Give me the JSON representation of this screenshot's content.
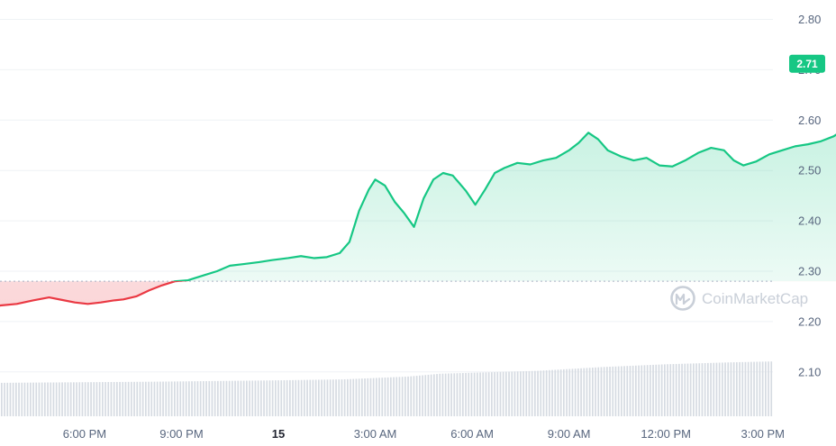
{
  "chart_data": {
    "type": "line",
    "title": "",
    "xlabel": "",
    "ylabel": "",
    "ylim": [
      2.1,
      2.85
    ],
    "y_ticks": [
      "2.80",
      "2.70",
      "2.60",
      "2.50",
      "2.40",
      "2.30",
      "2.20",
      "2.10"
    ],
    "x_ticks": [
      "6:00 PM",
      "9:00 PM",
      "15",
      "3:00 AM",
      "6:00 AM",
      "9:00 AM",
      "12:00 PM",
      "3:00 PM"
    ],
    "x_ticks_bold": [
      "15"
    ],
    "x_range_hours": [
      -21.5,
      39.5
    ],
    "baseline_price": 2.28,
    "current_price_label": "2.71",
    "grid": "horizontal",
    "colors": {
      "up": "#16c784",
      "down": "#ea3943",
      "badge": "#16c784",
      "volume": "#d6dbe2",
      "grid": "#eff2f5",
      "baseline": "#a6b0c3"
    },
    "series": [
      {
        "points": [
          [
            -21.5,
            2.28
          ],
          [
            -21.0,
            2.265
          ],
          [
            -20.5,
            2.272
          ],
          [
            -20.0,
            2.258
          ],
          [
            -19.6,
            2.236
          ],
          [
            -19.2,
            2.248
          ],
          [
            -18.7,
            2.244
          ],
          [
            -18.2,
            2.25
          ],
          [
            -17.7,
            2.262
          ],
          [
            -17.3,
            2.268
          ],
          [
            -16.8,
            2.263
          ],
          [
            -16.3,
            2.255
          ],
          [
            -15.9,
            2.27
          ],
          [
            -15.5,
            2.275
          ],
          [
            -15.1,
            2.265
          ],
          [
            -14.7,
            2.268
          ],
          [
            -14.3,
            2.258
          ],
          [
            -13.9,
            2.255
          ],
          [
            -13.5,
            2.262
          ],
          [
            -13.1,
            2.275
          ],
          [
            -12.7,
            2.27
          ],
          [
            -12.3,
            2.265
          ],
          [
            -11.9,
            2.262
          ],
          [
            -11.6,
            2.255
          ],
          [
            -11.2,
            2.245
          ],
          [
            -10.9,
            2.205
          ],
          [
            -10.6,
            2.185
          ],
          [
            -10.3,
            2.19
          ],
          [
            -9.9,
            2.202
          ],
          [
            -9.5,
            2.215
          ],
          [
            -9.1,
            2.225
          ],
          [
            -8.6,
            2.232
          ],
          [
            -8.1,
            2.235
          ],
          [
            -7.6,
            2.242
          ],
          [
            -7.1,
            2.248
          ],
          [
            -6.7,
            2.243
          ],
          [
            -6.3,
            2.238
          ],
          [
            -5.9,
            2.235
          ],
          [
            -5.5,
            2.238
          ],
          [
            -5.1,
            2.242
          ],
          [
            -4.8,
            2.244
          ],
          [
            -4.4,
            2.25
          ],
          [
            -4.0,
            2.262
          ],
          [
            -3.6,
            2.272
          ],
          [
            -3.2,
            2.28
          ],
          [
            -2.8,
            2.282
          ],
          [
            -2.3,
            2.292
          ],
          [
            -1.9,
            2.3
          ],
          [
            -1.5,
            2.311
          ],
          [
            -1.1,
            2.314
          ],
          [
            -0.6,
            2.318
          ],
          [
            -0.2,
            2.322
          ],
          [
            0.3,
            2.326
          ],
          [
            0.7,
            2.33
          ],
          [
            1.1,
            2.326
          ],
          [
            1.5,
            2.328
          ],
          [
            1.9,
            2.336
          ],
          [
            2.2,
            2.358
          ],
          [
            2.5,
            2.42
          ],
          [
            2.8,
            2.462
          ],
          [
            3.0,
            2.482
          ],
          [
            3.3,
            2.47
          ],
          [
            3.6,
            2.438
          ],
          [
            3.9,
            2.415
          ],
          [
            4.2,
            2.388
          ],
          [
            4.5,
            2.445
          ],
          [
            4.8,
            2.482
          ],
          [
            5.1,
            2.495
          ],
          [
            5.4,
            2.49
          ],
          [
            5.8,
            2.46
          ],
          [
            6.1,
            2.432
          ],
          [
            6.4,
            2.462
          ],
          [
            6.7,
            2.495
          ],
          [
            7.0,
            2.505
          ],
          [
            7.4,
            2.515
          ],
          [
            7.8,
            2.512
          ],
          [
            8.2,
            2.52
          ],
          [
            8.6,
            2.525
          ],
          [
            9.0,
            2.54
          ],
          [
            9.3,
            2.555
          ],
          [
            9.6,
            2.575
          ],
          [
            9.9,
            2.562
          ],
          [
            10.2,
            2.54
          ],
          [
            10.6,
            2.528
          ],
          [
            11.0,
            2.52
          ],
          [
            11.4,
            2.525
          ],
          [
            11.8,
            2.51
          ],
          [
            12.2,
            2.508
          ],
          [
            12.6,
            2.52
          ],
          [
            13.0,
            2.535
          ],
          [
            13.4,
            2.545
          ],
          [
            13.8,
            2.54
          ],
          [
            14.1,
            2.52
          ],
          [
            14.4,
            2.51
          ],
          [
            14.8,
            2.518
          ],
          [
            15.2,
            2.532
          ],
          [
            15.6,
            2.54
          ],
          [
            16.0,
            2.548
          ],
          [
            16.4,
            2.552
          ],
          [
            16.8,
            2.558
          ],
          [
            17.2,
            2.568
          ],
          [
            17.6,
            2.585
          ],
          [
            18.0,
            2.61
          ],
          [
            18.4,
            2.625
          ],
          [
            18.8,
            2.612
          ],
          [
            19.2,
            2.608
          ],
          [
            19.6,
            2.615
          ],
          [
            20.0,
            2.6
          ],
          [
            20.4,
            2.585
          ],
          [
            20.8,
            2.58
          ],
          [
            21.2,
            2.59
          ],
          [
            21.6,
            2.578
          ],
          [
            22.0,
            2.56
          ],
          [
            22.4,
            2.558
          ],
          [
            22.8,
            2.57
          ],
          [
            23.2,
            2.562
          ],
          [
            23.6,
            2.56
          ],
          [
            24.0,
            2.572
          ],
          [
            24.4,
            2.58
          ],
          [
            24.8,
            2.588
          ],
          [
            25.2,
            2.598
          ],
          [
            25.6,
            2.592
          ],
          [
            26.0,
            2.602
          ],
          [
            26.4,
            2.595
          ],
          [
            26.8,
            2.612
          ],
          [
            27.2,
            2.622
          ],
          [
            27.6,
            2.632
          ],
          [
            28.0,
            2.625
          ],
          [
            28.4,
            2.605
          ],
          [
            28.8,
            2.59
          ],
          [
            29.2,
            2.602
          ],
          [
            29.6,
            2.612
          ],
          [
            30.0,
            2.605
          ],
          [
            30.4,
            2.585
          ],
          [
            30.8,
            2.578
          ],
          [
            31.2,
            2.575
          ],
          [
            31.6,
            2.59
          ],
          [
            32.0,
            2.6
          ],
          [
            32.4,
            2.61
          ],
          [
            32.8,
            2.622
          ],
          [
            33.2,
            2.628
          ],
          [
            33.6,
            2.635
          ],
          [
            34.0,
            2.638
          ],
          [
            34.4,
            2.64
          ],
          [
            34.7,
            2.652
          ],
          [
            35.0,
            2.695
          ],
          [
            35.3,
            2.676
          ],
          [
            35.6,
            2.7
          ],
          [
            35.9,
            2.685
          ],
          [
            36.2,
            2.69
          ],
          [
            36.5,
            2.685
          ],
          [
            36.8,
            2.698
          ],
          [
            37.1,
            2.71
          ],
          [
            37.4,
            2.738
          ],
          [
            37.7,
            2.748
          ],
          [
            38.0,
            2.742
          ],
          [
            38.3,
            2.73
          ],
          [
            38.6,
            2.725
          ],
          [
            38.9,
            2.708
          ],
          [
            39.2,
            2.716
          ],
          [
            39.5,
            2.712
          ]
        ]
      }
    ],
    "volume": {
      "ylim": [
        0,
        100
      ],
      "points": [
        [
          -21.5,
          35
        ],
        [
          -17.0,
          35
        ],
        [
          -12.0,
          34.5
        ],
        [
          -8.0,
          35.5
        ],
        [
          -4.0,
          36.5
        ],
        [
          0.0,
          38
        ],
        [
          2.0,
          39
        ],
        [
          4.0,
          42
        ],
        [
          5.0,
          45
        ],
        [
          6.0,
          46
        ],
        [
          8.0,
          48
        ],
        [
          10.0,
          52
        ],
        [
          12.0,
          55
        ],
        [
          14.0,
          57
        ],
        [
          16.0,
          58.5
        ],
        [
          18.0,
          59
        ],
        [
          20.0,
          60
        ],
        [
          22.0,
          60
        ],
        [
          24.0,
          59
        ],
        [
          26.0,
          59.5
        ],
        [
          28.0,
          59
        ],
        [
          30.0,
          58.5
        ],
        [
          32.0,
          58.5
        ],
        [
          34.0,
          58.5
        ],
        [
          35.0,
          59
        ],
        [
          36.0,
          60
        ],
        [
          37.0,
          61
        ],
        [
          38.0,
          62.5
        ],
        [
          39.5,
          63
        ]
      ]
    }
  },
  "watermark": {
    "text": "CoinMarketCap",
    "icon": "coinmarketcap-logo-icon"
  }
}
